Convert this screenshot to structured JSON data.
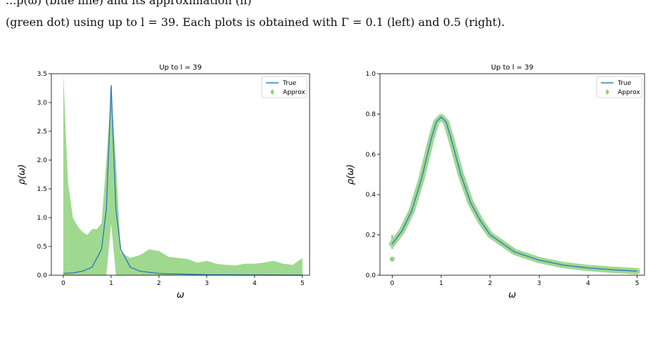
{
  "caption": {
    "top_fragment": "...p(ω) (blue line) and its approximation (h)",
    "text": "(green dot) using up to l = 39. Each plots is obtained with Γ = 0.1 (left) and 0.5 (right).",
    "bottom_fragment": ""
  },
  "colors": {
    "true_line": "#3a7fc0",
    "approx_fill": "#9fd98f",
    "approx_dot": "#8fd27f",
    "axis": "#000000"
  },
  "chart_data": [
    {
      "type": "line",
      "title": "Up to l = 39",
      "xlabel": "ω",
      "ylabel": "ρ(ω)",
      "xlim": [
        -0.25,
        5.15
      ],
      "ylim": [
        0,
        3.5
      ],
      "xticks": [
        "0",
        "1",
        "2",
        "3",
        "4",
        "5"
      ],
      "yticks": [
        "0.0",
        "0.5",
        "1.0",
        "1.5",
        "2.0",
        "2.5",
        "3.0",
        "3.5"
      ],
      "legend": {
        "placement": "top-right",
        "entries": [
          "True",
          "Approx"
        ]
      },
      "gamma": 0.1,
      "series": [
        {
          "name": "True",
          "x": [
            0,
            0.2,
            0.4,
            0.6,
            0.8,
            0.9,
            0.95,
            1.0,
            1.05,
            1.1,
            1.2,
            1.4,
            1.6,
            2,
            3,
            4,
            5
          ],
          "y": [
            0.03,
            0.04,
            0.07,
            0.14,
            0.45,
            1.15,
            2.2,
            3.3,
            2.2,
            1.15,
            0.45,
            0.14,
            0.07,
            0.03,
            0.008,
            0.004,
            0.002
          ]
        },
        {
          "name": "Approx",
          "x": [
            0,
            0.05,
            0.1,
            0.2,
            0.3,
            0.4,
            0.5,
            0.6,
            0.7,
            0.8,
            0.9,
            1.0,
            1.1,
            1.2,
            1.4,
            1.6,
            1.8,
            2.0,
            2.2,
            2.4,
            2.6,
            2.8,
            3.0,
            3.2,
            3.4,
            3.6,
            3.8,
            4.0,
            4.2,
            4.4,
            4.6,
            4.8,
            5.0
          ],
          "upper": [
            3.5,
            2.5,
            1.6,
            1.0,
            0.85,
            0.75,
            0.7,
            0.8,
            0.8,
            0.9,
            2.0,
            3.2,
            2.0,
            0.4,
            0.3,
            0.35,
            0.45,
            0.42,
            0.32,
            0.3,
            0.28,
            0.22,
            0.25,
            0.2,
            0.18,
            0.17,
            0.2,
            0.2,
            0.22,
            0.25,
            0.2,
            0.18,
            0.3
          ],
          "lower": [
            0,
            0,
            0,
            0,
            0,
            0,
            0,
            0,
            0,
            0,
            0,
            0.9,
            0,
            0,
            0,
            0,
            0,
            0,
            0,
            0,
            0,
            0,
            0,
            0,
            0,
            0,
            0,
            0,
            0,
            0,
            0,
            0,
            0
          ]
        }
      ]
    },
    {
      "type": "line",
      "title": "Up to l = 39",
      "xlabel": "ω",
      "ylabel": "ρ(ω)",
      "xlim": [
        -0.25,
        5.15
      ],
      "ylim": [
        0,
        1.0
      ],
      "xticks": [
        "0",
        "1",
        "2",
        "3",
        "4",
        "5"
      ],
      "yticks": [
        "0.0",
        "0.2",
        "0.4",
        "0.6",
        "0.8",
        "1.0"
      ],
      "legend": {
        "placement": "top-right",
        "entries": [
          "True",
          "Approx"
        ]
      },
      "gamma": 0.5,
      "series": [
        {
          "name": "True",
          "x": [
            0,
            0.2,
            0.4,
            0.6,
            0.8,
            0.9,
            1.0,
            1.1,
            1.2,
            1.4,
            1.6,
            1.8,
            2.0,
            2.5,
            3.0,
            3.5,
            4.0,
            4.5,
            5.0
          ],
          "y": [
            0.155,
            0.22,
            0.32,
            0.48,
            0.68,
            0.76,
            0.785,
            0.76,
            0.68,
            0.5,
            0.36,
            0.27,
            0.2,
            0.115,
            0.075,
            0.05,
            0.036,
            0.027,
            0.02
          ]
        },
        {
          "name": "Approx",
          "x": [
            0
          ],
          "y": [
            0.08
          ]
        }
      ]
    }
  ]
}
